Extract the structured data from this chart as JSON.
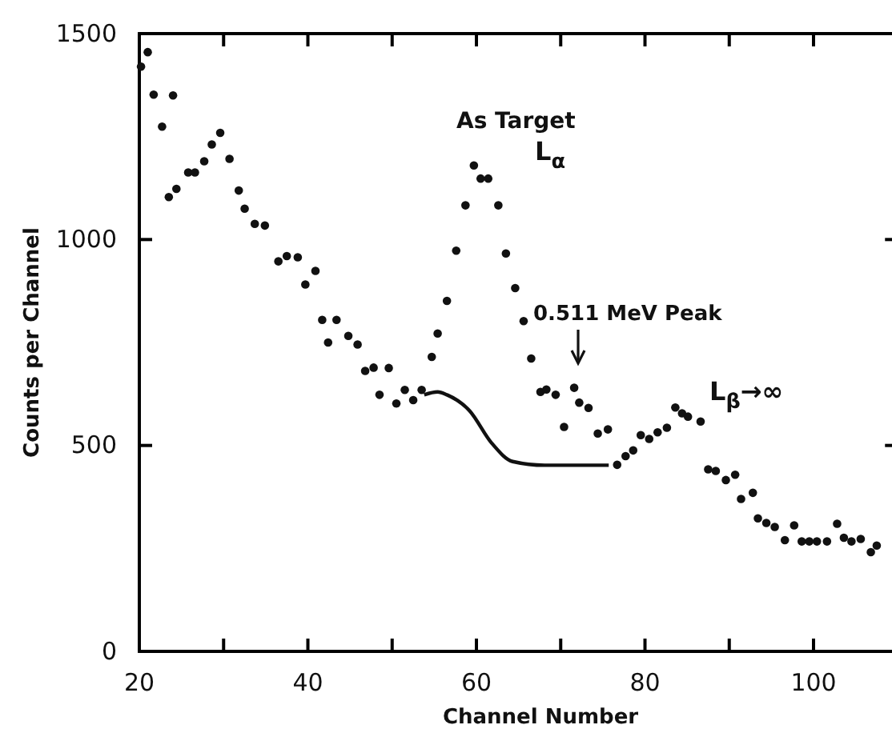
{
  "chart_data": {
    "type": "scatter",
    "xlabel": "Channel Number",
    "ylabel": "Counts per Channel",
    "xlim": [
      20,
      110
    ],
    "ylim": [
      0,
      1500
    ],
    "xticks": [
      20,
      {
        "value": 30,
        "label": null
      },
      40,
      {
        "value": 50,
        "label": null
      },
      60,
      {
        "value": 70,
        "label": null
      },
      80,
      {
        "value": 90,
        "label": null
      },
      100
    ],
    "yticks": [
      0,
      500,
      1000,
      1500
    ],
    "grid": false,
    "marker": "circle",
    "annotations": [
      "As Target",
      "L$_{α}$",
      "0.511 MeV Peak",
      "L$_{β}$→∞"
    ],
    "series": [
      {
        "color": "#111111",
        "x": [
          20.2,
          21,
          21.7,
          22.7,
          23.5,
          24,
          24.4,
          25.8,
          26.6,
          27.7,
          28.6,
          29.6,
          30.7,
          31.8,
          32.5,
          33.7,
          34.9,
          36.5,
          37.5,
          38.8,
          39.7,
          40.9,
          41.7,
          42.4,
          43.4,
          44.8,
          45.9,
          46.8,
          47.8,
          48.5,
          49.6,
          50.5,
          51.5,
          52.5,
          53.5,
          54.7,
          55.4,
          56.5,
          57.6,
          58.7,
          59.7,
          60.5,
          61.4,
          62.6,
          63.5,
          64.6,
          65.6,
          66.5,
          67.6,
          68.3,
          69.4,
          70.4,
          71.6,
          72.2,
          73.3,
          74.4,
          75.6,
          76.7,
          77.7,
          78.6,
          79.5,
          80.5,
          81.5,
          82.6,
          83.6,
          84.4,
          85.1,
          86.6,
          87.5,
          88.4,
          89.6,
          90.7,
          91.4,
          92.8,
          93.4,
          94.4,
          95.4,
          96.6,
          97.7,
          98.6,
          99.5,
          100.4,
          101.6,
          102.8,
          103.6,
          104.5,
          105.6,
          106.8,
          107.5
        ],
        "values": [
          1420,
          1455,
          1352,
          1274,
          1103,
          1350,
          1123,
          1163,
          1163,
          1190,
          1231,
          1259,
          1196,
          1119,
          1075,
          1038,
          1034,
          947,
          960,
          957,
          891,
          924,
          805,
          750,
          805,
          766,
          745,
          681,
          689,
          623,
          688,
          602,
          635,
          610,
          635,
          715,
          772,
          851,
          973,
          1083,
          1180,
          1148,
          1148,
          1083,
          966,
          882,
          802,
          711,
          630,
          636,
          623,
          545,
          640,
          604,
          591,
          529,
          539,
          453,
          474,
          488,
          525,
          516,
          532,
          543,
          592,
          578,
          570,
          558,
          442,
          438,
          416,
          429,
          370,
          385,
          323,
          312,
          302,
          270,
          306,
          267,
          267,
          267,
          267,
          310,
          276,
          267,
          273,
          241,
          257
        ]
      },
      {
        "type": "line",
        "color": "#111111",
        "marker": "none",
        "x": [
          53.8,
          55.4,
          56.5,
          59.2,
          61.8,
          64.3,
          68.1,
          75.7
        ],
        "values": [
          623,
          630,
          623,
          584,
          506,
          461,
          452,
          452
        ]
      }
    ]
  }
}
